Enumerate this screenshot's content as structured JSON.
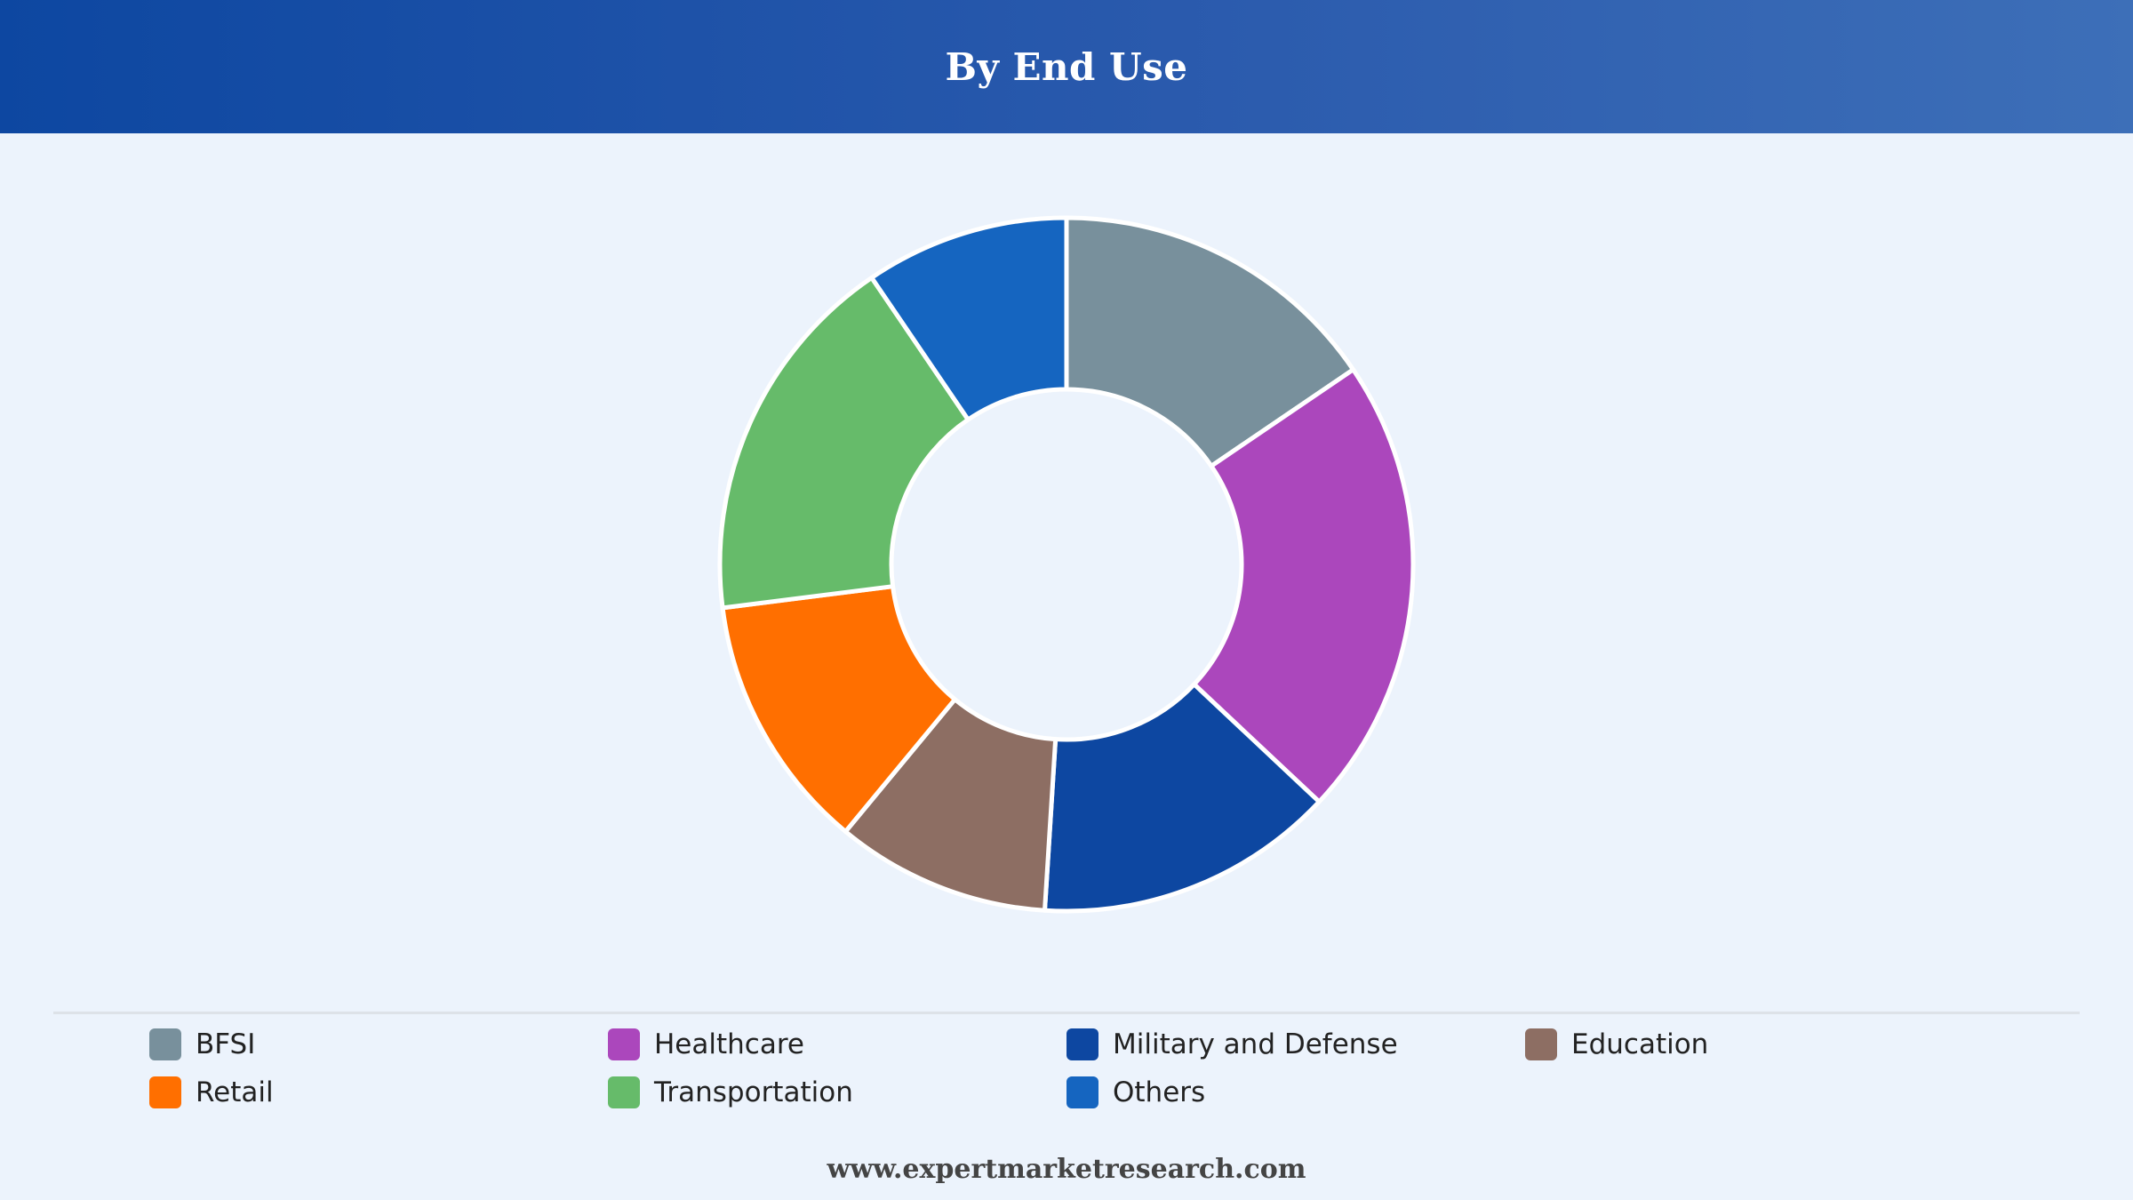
{
  "header": {
    "title": "By End Use"
  },
  "chart_data": {
    "type": "pie",
    "donut": true,
    "title": "By End Use",
    "legend_position": "bottom",
    "categories": [
      "BFSI",
      "Healthcare",
      "Military and Defense",
      "Education",
      "Retail",
      "Transportation",
      "Others"
    ],
    "values": [
      15.5,
      21.5,
      14.0,
      10.0,
      12.0,
      17.5,
      9.5
    ],
    "colors": [
      "#78909c",
      "#ab47bc",
      "#0d47a1",
      "#8d6e63",
      "#ff6f00",
      "#66bb6a",
      "#1565c0"
    ]
  },
  "legend": [
    {
      "label": "BFSI",
      "color": "#78909c"
    },
    {
      "label": "Healthcare",
      "color": "#ab47bc"
    },
    {
      "label": "Military and Defense",
      "color": "#0d47a1"
    },
    {
      "label": "Education",
      "color": "#8d6e63"
    },
    {
      "label": "Retail",
      "color": "#ff6f00"
    },
    {
      "label": "Transportation",
      "color": "#66bb6a"
    },
    {
      "label": "Others",
      "color": "#1565c0"
    }
  ],
  "footer": {
    "website": "www.expertmarketresearch.com"
  }
}
